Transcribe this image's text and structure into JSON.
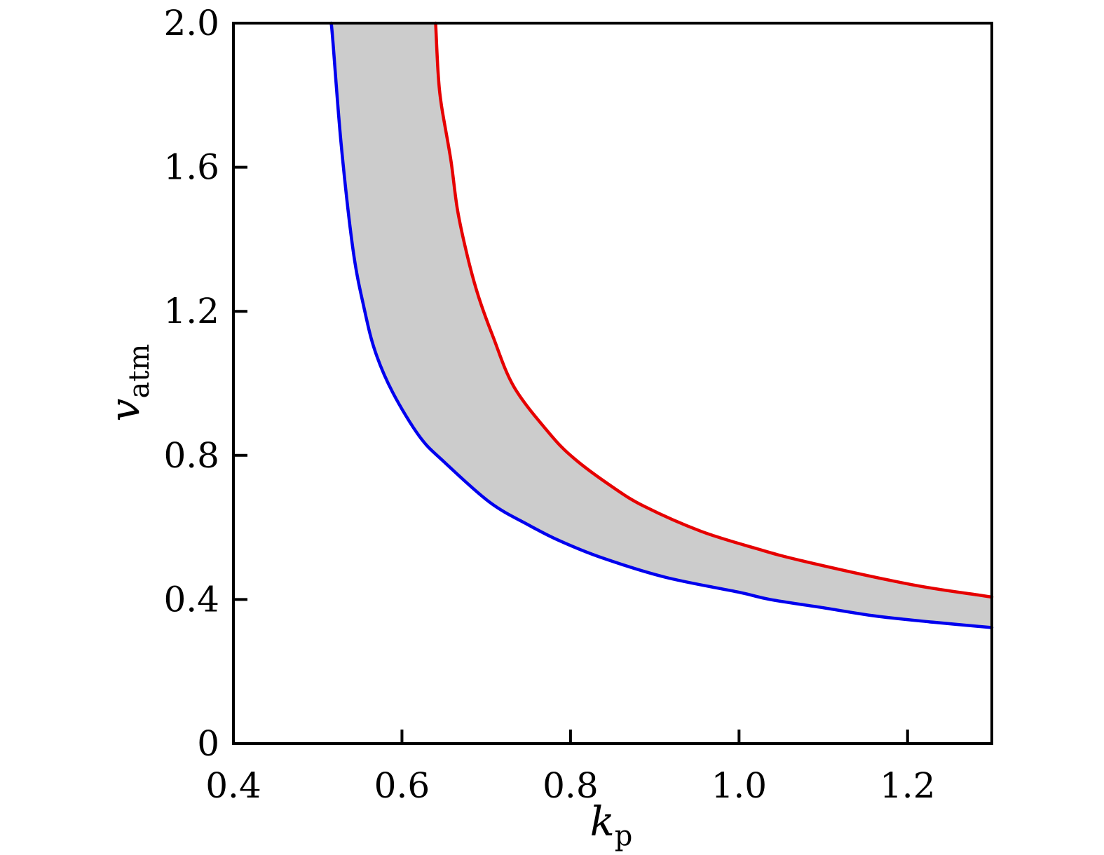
{
  "figure": {
    "background": "#ffffff",
    "frame_color": "#000000"
  },
  "chart_data": {
    "type": "area",
    "title": "",
    "xlabel": "k_p",
    "xlabel_main": "k",
    "xlabel_sub": "p",
    "ylabel": "v_atm",
    "ylabel_main": "v",
    "ylabel_sub": "atm",
    "xlim": [
      0.4,
      1.3
    ],
    "ylim": [
      0,
      2.0
    ],
    "x_ticks": [
      0.4,
      0.6,
      0.8,
      1.0,
      1.2
    ],
    "x_tick_labels": [
      "0.4",
      "0.6",
      "0.8",
      "1.0",
      "1.2"
    ],
    "y_ticks": [
      0,
      0.4,
      0.8,
      1.2,
      1.6,
      2.0
    ],
    "y_tick_labels": [
      "0",
      "0.4",
      "0.8",
      "1.2",
      "1.6",
      "2.0"
    ],
    "grid": false,
    "legend": "none",
    "band_fill_color": "#cccccc",
    "band_description": "shaded allowed region between lower blue curve and upper red curve",
    "series": [
      {
        "name": "lower-bound",
        "color": "#0000ee",
        "points": [
          [
            0.516,
            2.0
          ],
          [
            0.518,
            1.95
          ],
          [
            0.528,
            1.66
          ],
          [
            0.542,
            1.37
          ],
          [
            0.555,
            1.21
          ],
          [
            0.568,
            1.09
          ],
          [
            0.589,
            0.975
          ],
          [
            0.621,
            0.852
          ],
          [
            0.65,
            0.782
          ],
          [
            0.704,
            0.67
          ],
          [
            0.75,
            0.607
          ],
          [
            0.787,
            0.563
          ],
          [
            0.837,
            0.516
          ],
          [
            0.912,
            0.462
          ],
          [
            1.0,
            0.42
          ],
          [
            1.037,
            0.4
          ],
          [
            1.1,
            0.377
          ],
          [
            1.162,
            0.354
          ],
          [
            1.23,
            0.337
          ],
          [
            1.3,
            0.322
          ]
        ]
      },
      {
        "name": "upper-bound",
        "color": "#e60000",
        "points": [
          [
            0.64,
            2.0
          ],
          [
            0.643,
            1.86
          ],
          [
            0.647,
            1.77
          ],
          [
            0.658,
            1.62
          ],
          [
            0.666,
            1.48
          ],
          [
            0.678,
            1.35
          ],
          [
            0.691,
            1.24
          ],
          [
            0.708,
            1.13
          ],
          [
            0.733,
            0.99
          ],
          [
            0.775,
            0.861
          ],
          [
            0.805,
            0.79
          ],
          [
            0.85,
            0.712
          ],
          [
            0.888,
            0.658
          ],
          [
            0.954,
            0.59
          ],
          [
            1.021,
            0.541
          ],
          [
            1.079,
            0.505
          ],
          [
            1.203,
            0.442
          ],
          [
            1.285,
            0.412
          ],
          [
            1.3,
            0.407
          ]
        ]
      }
    ]
  }
}
